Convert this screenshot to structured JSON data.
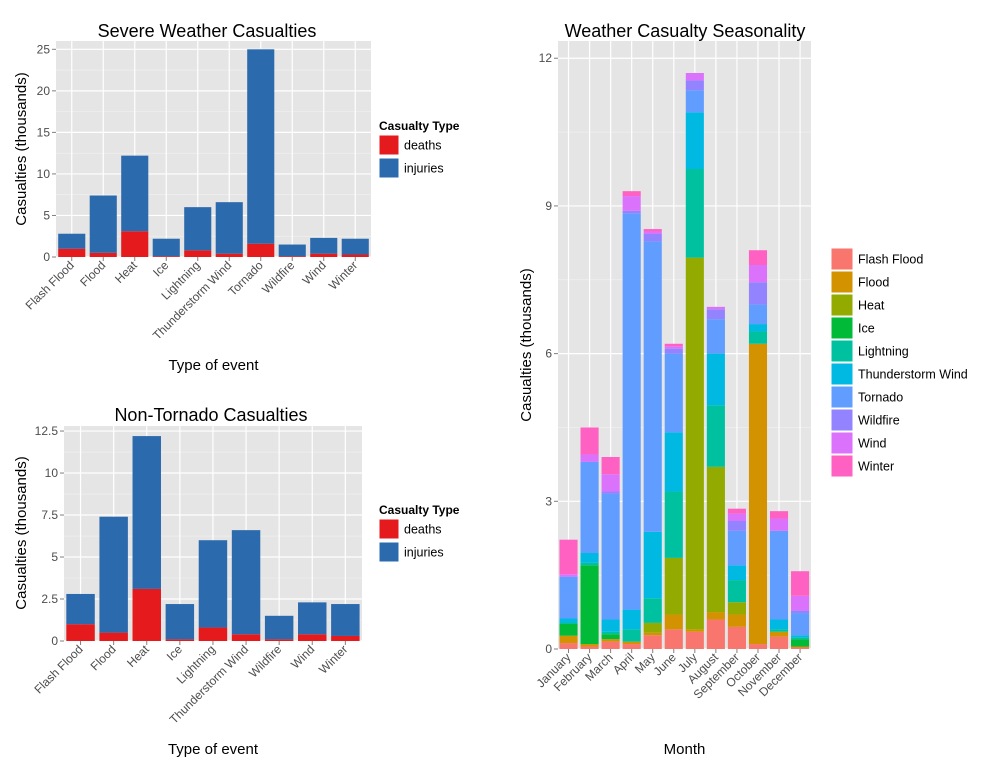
{
  "chart_data": [
    {
      "type": "bar",
      "stacked": true,
      "title": "Severe Weather Casualties",
      "xlabel": "Type of event",
      "ylabel": "Casualties (thousands)",
      "ylim": [
        0,
        26
      ],
      "yticks": [
        0,
        5,
        10,
        15,
        20,
        25
      ],
      "ytick_labels": [
        "0",
        "5",
        "10",
        "15",
        "20",
        "25"
      ],
      "categories": [
        "Flash Flood",
        "Flood",
        "Heat",
        "Ice",
        "Lightning",
        "Thunderstorm Wind",
        "Tornado",
        "Wildfire",
        "Wind",
        "Winter"
      ],
      "legend": {
        "title": "Casualty Type",
        "position": "right"
      },
      "series": [
        {
          "name": "deaths",
          "color": "#e41a1c",
          "values": [
            1.0,
            0.5,
            3.1,
            0.1,
            0.8,
            0.4,
            1.6,
            0.1,
            0.4,
            0.3
          ]
        },
        {
          "name": "injuries",
          "color": "#2c6aae",
          "values": [
            1.8,
            6.9,
            9.1,
            2.1,
            5.2,
            6.2,
            23.4,
            1.4,
            1.9,
            1.9
          ]
        }
      ]
    },
    {
      "type": "bar",
      "stacked": true,
      "title": "Non-Tornado Casualties",
      "xlabel": "Type of event",
      "ylabel": "Casualties (thousands)",
      "ylim": [
        0,
        12.8
      ],
      "yticks": [
        0,
        2.5,
        5,
        7.5,
        10,
        12.5
      ],
      "ytick_labels": [
        "0",
        "2.5",
        "5",
        "7.5",
        "10",
        "12.5"
      ],
      "categories": [
        "Flash Flood",
        "Flood",
        "Heat",
        "Ice",
        "Lightning",
        "Thunderstorm Wind",
        "Wildfire",
        "Wind",
        "Winter"
      ],
      "legend": {
        "title": "Casualty Type",
        "position": "right"
      },
      "series": [
        {
          "name": "deaths",
          "color": "#e41a1c",
          "values": [
            1.0,
            0.5,
            3.1,
            0.1,
            0.8,
            0.4,
            0.1,
            0.4,
            0.3
          ]
        },
        {
          "name": "injuries",
          "color": "#2c6aae",
          "values": [
            1.8,
            6.9,
            9.1,
            2.1,
            5.2,
            6.2,
            1.4,
            1.9,
            1.9
          ]
        }
      ]
    },
    {
      "type": "bar",
      "stacked": true,
      "title": "Weather Casualty Seasonality",
      "xlabel": "Month",
      "ylabel": "Casualties (thousands)",
      "ylim": [
        0,
        12.35
      ],
      "yticks": [
        0,
        3,
        6,
        9,
        12
      ],
      "ytick_labels": [
        "0",
        "3",
        "6",
        "9",
        "12"
      ],
      "categories": [
        "January",
        "February",
        "March",
        "April",
        "May",
        "June",
        "July",
        "August",
        "September",
        "October",
        "November",
        "December"
      ],
      "legend": {
        "title": "",
        "position": "right"
      },
      "series": [
        {
          "name": "Flash Flood",
          "color": "#f8766d",
          "values": [
            0.12,
            0.05,
            0.15,
            0.1,
            0.28,
            0.4,
            0.35,
            0.6,
            0.45,
            0.1,
            0.25,
            0.03
          ]
        },
        {
          "name": "Flood",
          "color": "#d39200",
          "values": [
            0.15,
            0.05,
            0.05,
            0.05,
            0.05,
            0.3,
            0.05,
            0.15,
            0.25,
            6.1,
            0.1,
            0.02
          ]
        },
        {
          "name": "Heat",
          "color": "#93aa00",
          "values": [
            0.0,
            0.0,
            0.0,
            0.0,
            0.2,
            1.15,
            7.55,
            2.95,
            0.25,
            0.0,
            0.0,
            0.0
          ]
        },
        {
          "name": "Ice",
          "color": "#00ba38",
          "values": [
            0.25,
            1.6,
            0.1,
            0.0,
            0.0,
            0.0,
            0.0,
            0.0,
            0.0,
            0.0,
            0.0,
            0.15
          ]
        },
        {
          "name": "Lightning",
          "color": "#00c19f",
          "values": [
            0.0,
            0.05,
            0.05,
            0.25,
            0.5,
            1.35,
            1.8,
            1.25,
            0.45,
            0.25,
            0.05,
            0.03
          ]
        },
        {
          "name": "Thunderstorm Wind",
          "color": "#00b9e3",
          "values": [
            0.1,
            0.2,
            0.25,
            0.4,
            1.35,
            1.2,
            1.15,
            1.05,
            0.3,
            0.15,
            0.2,
            0.05
          ]
        },
        {
          "name": "Tornado",
          "color": "#619cff",
          "values": [
            0.85,
            1.85,
            2.55,
            8.05,
            5.9,
            1.6,
            0.45,
            0.7,
            0.7,
            0.4,
            1.8,
            0.45
          ]
        },
        {
          "name": "Wildfire",
          "color": "#9483ff",
          "values": [
            0.0,
            0.0,
            0.05,
            0.05,
            0.15,
            0.1,
            0.2,
            0.2,
            0.2,
            0.45,
            0.0,
            0.05
          ]
        },
        {
          "name": "Wind",
          "color": "#db72fb",
          "values": [
            0.05,
            0.15,
            0.35,
            0.3,
            0.05,
            0.05,
            0.15,
            0.05,
            0.15,
            0.35,
            0.25,
            0.3
          ]
        },
        {
          "name": "Winter",
          "color": "#ff61c3",
          "values": [
            0.7,
            0.55,
            0.35,
            0.1,
            0.05,
            0.05,
            0.0,
            0.0,
            0.1,
            0.3,
            0.15,
            0.5
          ]
        }
      ]
    }
  ]
}
